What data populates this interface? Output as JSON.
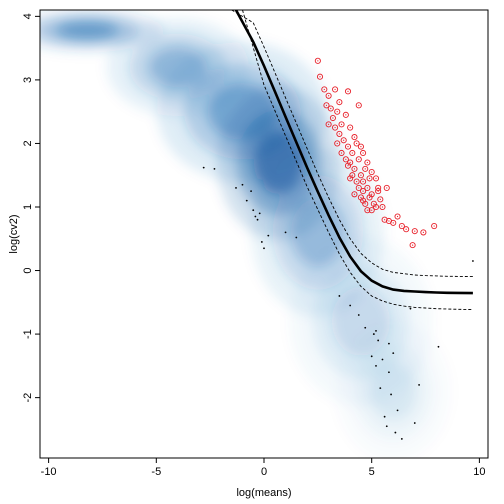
{
  "chart_data": {
    "type": "scatter",
    "title": "",
    "xlabel": "log(means)",
    "ylabel": "log(cv2)",
    "xlim": [
      -10.4,
      10.4
    ],
    "ylim": [
      -2.95,
      4.1
    ],
    "xticks": [
      -10,
      -5,
      0,
      5,
      10
    ],
    "yticks": [
      -2,
      -1,
      0,
      1,
      2,
      3,
      4
    ],
    "xtick_labels": [
      "-10",
      "-5",
      "0",
      "5",
      "10"
    ],
    "ytick_labels": [
      "-2",
      "-1",
      "0",
      "1",
      "2",
      "3",
      "4"
    ],
    "grid": false,
    "legend": "none",
    "colors": {
      "density": "#2171b5",
      "density_dark": "#08519c",
      "highlight": "#e8202a",
      "fit": "#000000",
      "points": "#000000"
    },
    "density_regions": [
      {
        "cx": -8.2,
        "cy": 3.78,
        "sx": 1.6,
        "sy": 0.15,
        "weight": 0.85
      },
      {
        "cx": -4.0,
        "cy": 3.2,
        "sx": 1.5,
        "sy": 0.35,
        "weight": 0.55
      },
      {
        "cx": -1.0,
        "cy": 2.5,
        "sx": 1.8,
        "sy": 0.5,
        "weight": 0.7
      },
      {
        "cx": 0.7,
        "cy": 1.7,
        "sx": 1.3,
        "sy": 0.55,
        "weight": 0.95
      },
      {
        "cx": 2.5,
        "cy": 0.6,
        "sx": 1.4,
        "sy": 0.6,
        "weight": 0.5
      },
      {
        "cx": 4.5,
        "cy": -0.8,
        "sx": 1.5,
        "sy": 0.6,
        "weight": 0.25
      },
      {
        "cx": 6.0,
        "cy": -1.9,
        "sx": 1.2,
        "sy": 0.5,
        "weight": 0.15
      }
    ],
    "fit_curve": {
      "name": "",
      "x": [
        -1.3,
        -0.5,
        0.0,
        0.5,
        1.0,
        1.5,
        2.0,
        2.5,
        3.0,
        3.5,
        4.0,
        4.5,
        5.0,
        5.5,
        6.0,
        6.5,
        7.0,
        7.5,
        8.0,
        8.5,
        9.0,
        9.7
      ],
      "y": [
        4.1,
        3.6,
        3.22,
        2.82,
        2.42,
        2.02,
        1.62,
        1.24,
        0.87,
        0.52,
        0.22,
        -0.01,
        -0.16,
        -0.25,
        -0.3,
        -0.32,
        -0.33,
        -0.34,
        -0.345,
        -0.35,
        -0.352,
        -0.355
      ]
    },
    "upper_band": {
      "x": [
        -1.5,
        -0.5,
        0.0,
        0.5,
        1.0,
        1.5,
        2.0,
        2.5,
        3.0,
        3.5,
        4.0,
        4.5,
        5.0,
        5.5,
        6.0,
        6.5,
        7.0,
        7.5,
        8.0,
        8.5,
        9.0,
        9.7
      ],
      "y": [
        4.1,
        3.9,
        3.52,
        3.12,
        2.72,
        2.32,
        1.92,
        1.52,
        1.15,
        0.8,
        0.5,
        0.27,
        0.12,
        0.02,
        -0.03,
        -0.05,
        -0.07,
        -0.08,
        -0.085,
        -0.09,
        -0.092,
        -0.095
      ]
    },
    "lower_band": {
      "x": [
        -1.0,
        0.0,
        0.5,
        1.0,
        1.5,
        2.0,
        2.5,
        3.0,
        3.5,
        4.0,
        4.5,
        5.0,
        5.5,
        6.0,
        6.5,
        7.0,
        7.5,
        8.0,
        8.5,
        9.0,
        9.7
      ],
      "y": [
        4.1,
        2.92,
        2.52,
        2.12,
        1.72,
        1.32,
        0.96,
        0.6,
        0.26,
        -0.03,
        -0.25,
        -0.4,
        -0.48,
        -0.53,
        -0.56,
        -0.58,
        -0.59,
        -0.6,
        -0.605,
        -0.61,
        -0.615
      ]
    },
    "highlighted_points": {
      "x": [
        2.5,
        2.6,
        2.8,
        3.0,
        3.3,
        3.5,
        3.9,
        4.4,
        2.9,
        3.1,
        3.4,
        3.2,
        3.8,
        3.0,
        3.3,
        3.6,
        4.0,
        3.5,
        3.7,
        4.2,
        3.4,
        3.9,
        4.3,
        4.5,
        3.6,
        4.1,
        4.6,
        3.8,
        4.0,
        4.4,
        4.8,
        3.9,
        4.2,
        4.7,
        5.0,
        4.1,
        4.5,
        4.9,
        5.2,
        4.3,
        4.6,
        4.0,
        4.4,
        4.8,
        5.3,
        4.2,
        4.6,
        5.0,
        4.5,
        4.9,
        5.4,
        4.7,
        5.1,
        4.6,
        4.8,
        5.2,
        5.0,
        5.5,
        5.6,
        6.0,
        6.2,
        6.4,
        5.8,
        6.6,
        7.0,
        7.4,
        7.9,
        6.9,
        5.3,
        5.7
      ],
      "y": [
        3.3,
        3.05,
        2.85,
        2.75,
        2.85,
        2.65,
        2.82,
        2.6,
        2.6,
        2.55,
        2.5,
        2.4,
        2.45,
        2.3,
        2.25,
        2.3,
        2.25,
        2.15,
        2.05,
        2.1,
        2.0,
        1.95,
        2.0,
        1.95,
        1.85,
        1.85,
        1.85,
        1.75,
        1.7,
        1.75,
        1.7,
        1.65,
        1.6,
        1.6,
        1.55,
        1.5,
        1.5,
        1.45,
        1.45,
        1.4,
        1.4,
        1.45,
        1.3,
        1.3,
        1.3,
        1.2,
        1.25,
        1.2,
        1.15,
        1.15,
        1.12,
        1.05,
        1.05,
        1.1,
        0.95,
        1.0,
        0.95,
        1.0,
        0.8,
        0.75,
        0.85,
        0.7,
        0.78,
        0.65,
        0.62,
        0.6,
        0.7,
        0.4,
        1.25,
        1.3
      ]
    },
    "sparse_points": {
      "x": [
        -2.8,
        -2.3,
        -1.3,
        -1.0,
        -0.8,
        -0.6,
        -0.5,
        -0.4,
        -0.3,
        -0.2,
        -0.1,
        0.0,
        0.2,
        1.0,
        1.5,
        3.5,
        4.0,
        4.4,
        4.7,
        5.1,
        5.3,
        5.0,
        5.2,
        5.5,
        5.8,
        6.0,
        5.4,
        5.9,
        6.2,
        5.6,
        5.7,
        6.1,
        7.2,
        8.1,
        9.7,
        5.2,
        5.8,
        6.4,
        7.0,
        6.8
      ],
      "y": [
        1.62,
        1.6,
        1.3,
        1.35,
        1.1,
        1.25,
        0.95,
        0.85,
        0.8,
        0.9,
        0.45,
        0.35,
        0.55,
        0.6,
        0.52,
        -0.4,
        -0.55,
        -0.7,
        -0.9,
        -1.0,
        -1.1,
        -1.35,
        -1.5,
        -1.4,
        -1.6,
        -1.3,
        -1.85,
        -1.95,
        -2.2,
        -2.3,
        -2.45,
        -2.55,
        -1.8,
        -1.2,
        0.15,
        -0.95,
        -1.15,
        -2.65,
        -2.4,
        -0.6
      ]
    }
  }
}
